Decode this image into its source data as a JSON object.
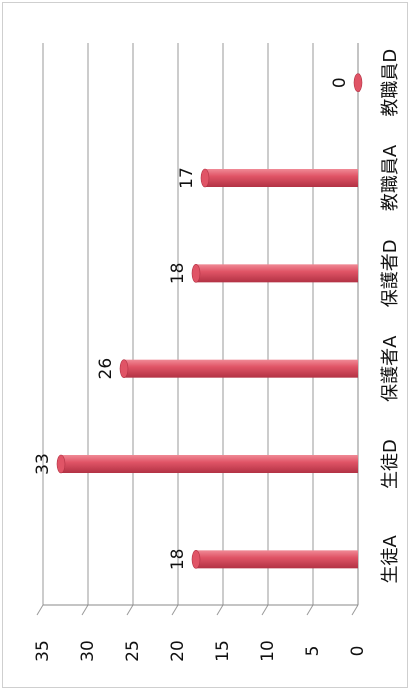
{
  "chart_data": {
    "type": "bar",
    "categories": [
      "生徒A",
      "生徒D",
      "保護者A",
      "保護者D",
      "教職員A",
      "教職員D"
    ],
    "values": [
      18,
      33,
      26,
      18,
      17,
      0
    ],
    "data_labels": [
      "18",
      "33",
      "26",
      "18",
      "17",
      "0"
    ],
    "ylim": [
      0,
      35
    ],
    "y_ticks": [
      "0",
      "5",
      "10",
      "15",
      "20",
      "25",
      "30",
      "35"
    ],
    "title": "",
    "xlabel": "",
    "ylabel": "",
    "grid": true,
    "legend": "none",
    "orientation": "rotated-90-clockwise",
    "bar_color": "#e05466",
    "bar_highlight": "#f08a96",
    "bar_shadow": "#b23244"
  }
}
